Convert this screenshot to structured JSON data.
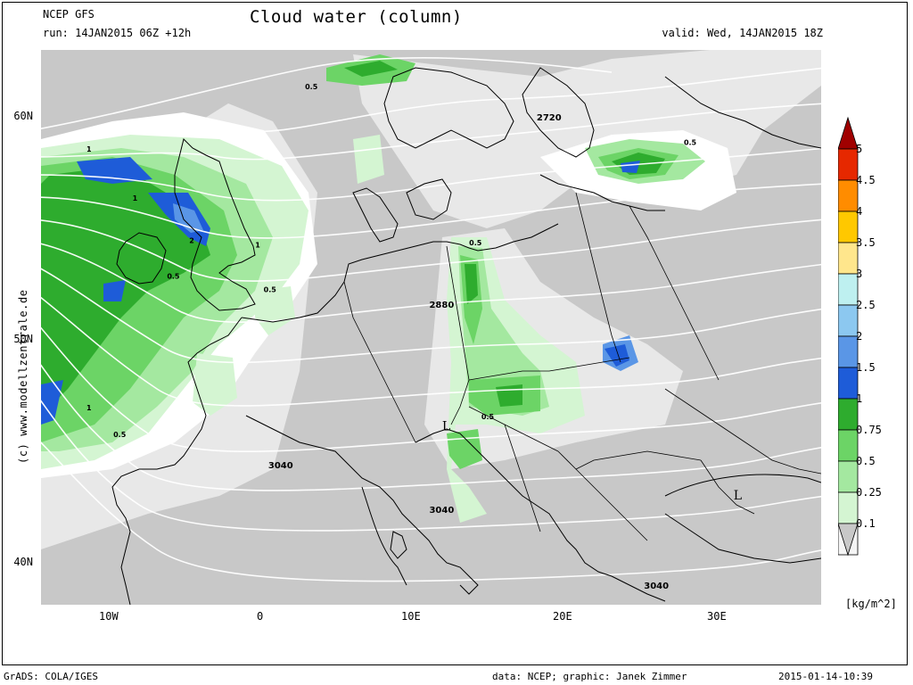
{
  "header": {
    "model": "NCEP GFS",
    "run": "run: 14JAN2015 06Z +12h",
    "title": "Cloud water (column)",
    "valid": "valid: Wed, 14JAN2015 18Z"
  },
  "watermark": "(c) www.modellzentrale.de",
  "map": {
    "lat_labels": [
      "60N",
      "50N",
      "40N"
    ],
    "lon_labels": [
      "10W",
      "0",
      "10E",
      "20E",
      "30E"
    ],
    "colors": {
      "background": "#c8c8c8",
      "light": "#e8e8e8",
      "white": "#ffffff",
      "green1": "#d4f5d2",
      "green2": "#a4e8a0",
      "green3": "#6cd466",
      "green4": "#2eac2e",
      "blue1": "#1e5cd8",
      "blue2": "#5a96e6",
      "isoline": "#ffffff",
      "coast": "#000000"
    },
    "contour_labels": [
      {
        "text": "2720",
        "lon": 19,
        "lat": 59.8
      },
      {
        "text": "2880",
        "lon": 12,
        "lat": 51.4
      },
      {
        "text": "3040",
        "lon": 1.5,
        "lat": 44.2
      },
      {
        "text": "3040",
        "lon": 12,
        "lat": 42.2
      },
      {
        "text": "3040",
        "lon": 26,
        "lat": 38.8
      },
      {
        "text": "1",
        "lon": -11,
        "lat": 58.4
      },
      {
        "text": "1",
        "lon": -8,
        "lat": 56.2
      },
      {
        "text": "1",
        "lon": 0,
        "lat": 54.1
      },
      {
        "text": "1",
        "lon": -11,
        "lat": 46.8
      },
      {
        "text": "2",
        "lon": -4.3,
        "lat": 54.3
      },
      {
        "text": "0.5",
        "lon": 0.8,
        "lat": 52.1
      },
      {
        "text": "0.5",
        "lon": -5.5,
        "lat": 52.7
      },
      {
        "text": "0.5",
        "lon": -9,
        "lat": 45.6
      },
      {
        "text": "0.5",
        "lon": 3.5,
        "lat": 61.2
      },
      {
        "text": "0.5",
        "lon": 28.2,
        "lat": 58.7
      },
      {
        "text": "0.5",
        "lon": 14.2,
        "lat": 54.2
      },
      {
        "text": "0.5",
        "lon": 15,
        "lat": 46.4
      }
    ],
    "lows": [
      {
        "text": "L",
        "lon": 12.3,
        "lat": 45.9
      },
      {
        "text": "L",
        "lon": 31.3,
        "lat": 42.8
      }
    ]
  },
  "legend": {
    "levels": [
      "5",
      "4.5",
      "4",
      "3.5",
      "3",
      "2.5",
      "2",
      "1.5",
      "1",
      "0.75",
      "0.5",
      "0.25",
      "0.1"
    ],
    "colors": [
      "#a00000",
      "#e62800",
      "#ff8c00",
      "#ffc800",
      "#ffe68c",
      "#bef0f0",
      "#8cc8f0",
      "#5a96e6",
      "#1e5cd8",
      "#2eac2e",
      "#6cd466",
      "#a4e8a0",
      "#d4f5d2",
      "#f5f5f5",
      "#c8c8c8"
    ],
    "unit": "[kg/m^2]"
  },
  "footer": {
    "left": "GrADS: COLA/IGES",
    "credit": "data: NCEP; graphic: Janek Zimmer",
    "timestamp": "2015-01-14-10:39"
  }
}
